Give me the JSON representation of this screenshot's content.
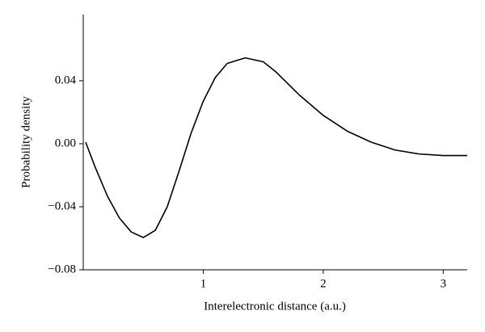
{
  "chart_data": {
    "type": "line",
    "x_label": "Interelectronic distance (a.u.)",
    "y_label": "Probability density",
    "x": [
      0.02,
      0.1,
      0.2,
      0.3,
      0.4,
      0.5,
      0.6,
      0.7,
      0.8,
      0.9,
      1.0,
      1.1,
      1.2,
      1.35,
      1.5,
      1.6,
      1.8,
      2.0,
      2.2,
      2.4,
      2.6,
      2.8,
      3.0,
      3.2
    ],
    "series": [
      {
        "name": "Probability density",
        "color": "#000000",
        "values": [
          0.001,
          -0.015,
          -0.033,
          -0.047,
          -0.056,
          -0.0595,
          -0.055,
          -0.04,
          -0.017,
          0.007,
          0.027,
          0.042,
          0.051,
          0.0545,
          0.052,
          0.046,
          0.031,
          0.018,
          0.008,
          0.001,
          -0.004,
          -0.0065,
          -0.0075,
          -0.0075
        ]
      }
    ],
    "xlim": [
      0,
      3.2
    ],
    "xticks": [
      1,
      2,
      3
    ],
    "ylim": [
      -0.08,
      0.082
    ],
    "yticks": [
      {
        "value": -0.08,
        "label": "−0.08"
      },
      {
        "value": -0.04,
        "label": "−0.04"
      },
      {
        "value": 0,
        "label": "0.00"
      },
      0.04
    ],
    "grid": false
  }
}
